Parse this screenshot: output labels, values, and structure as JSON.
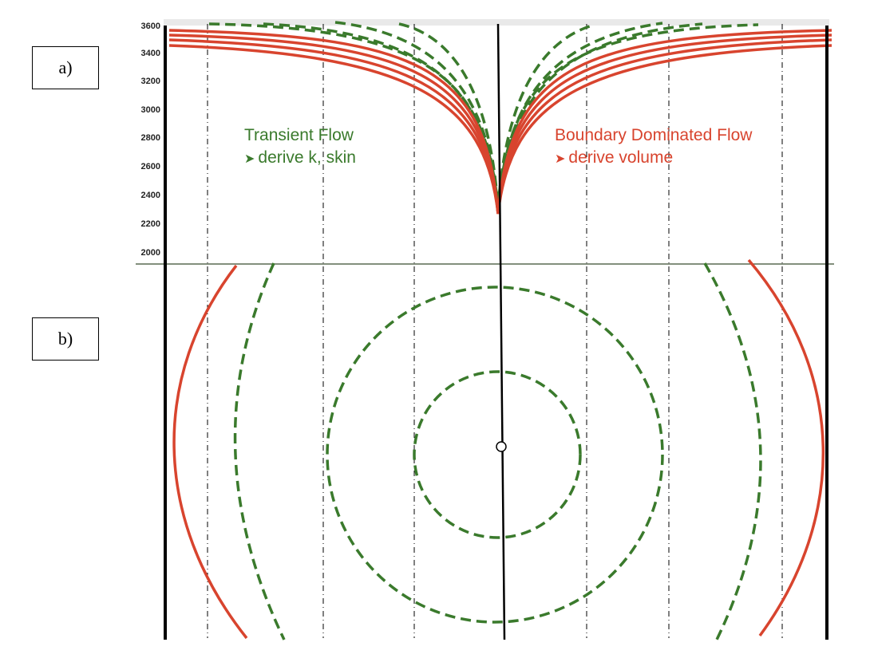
{
  "panels": {
    "a": "a)",
    "b": "b)"
  },
  "yaxis": {
    "ticks": [
      "3600",
      "3400",
      "3200",
      "3000",
      "2800",
      "2600",
      "2400",
      "2200",
      "2000"
    ],
    "range": [
      1950,
      3600
    ]
  },
  "annotations": {
    "transient": {
      "title": "Transient Flow",
      "detail": "derive k, skin"
    },
    "boundary": {
      "title": "Boundary Dominated Flow",
      "detail": "derive volume"
    }
  },
  "colors": {
    "transient": "#3a7a2c",
    "boundary": "#d8442e",
    "axis": "#000000",
    "header": "#e9e9e9"
  },
  "icons": {
    "bullet": "arrow-bullet-icon",
    "well": "well-icon"
  }
}
